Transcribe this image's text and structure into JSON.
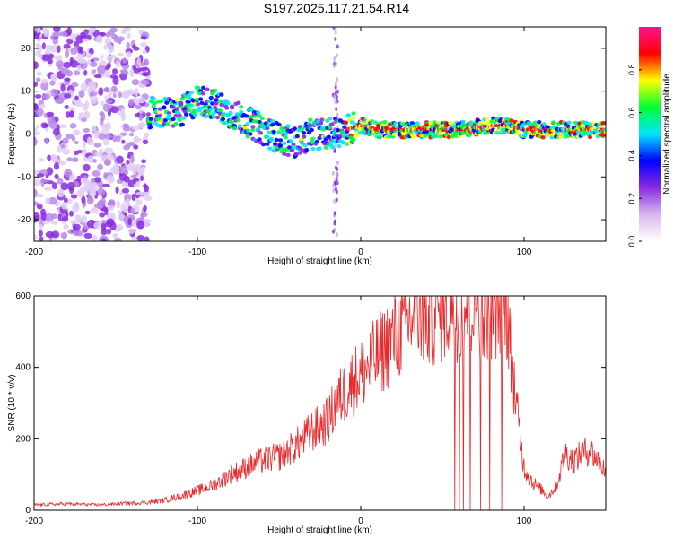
{
  "title": "S197.2025.117.21.54.R14",
  "chart_data": [
    {
      "type": "heatmap",
      "title": "S197.2025.117.21.54.R14",
      "xlabel": "Height of straight line (km)",
      "ylabel": "Frequency (Hz)",
      "xlim": [
        -200,
        150
      ],
      "ylim": [
        -25,
        25
      ],
      "x_ticks": [
        -200,
        -100,
        0,
        100
      ],
      "x_tick_labels": [
        "-200",
        "-100",
        "0",
        "100"
      ],
      "y_ticks": [
        -20,
        -10,
        0,
        10,
        20
      ],
      "y_tick_labels": [
        "-20",
        "-10",
        "0",
        "10",
        "20"
      ],
      "colorbar": {
        "label": "Normalized spectral amplitude",
        "range": [
          0,
          1
        ],
        "ticks": [
          0.0,
          0.2,
          0.4,
          0.6,
          0.8
        ],
        "tick_labels": [
          "0.0",
          "0.2",
          "0.4",
          "0.6",
          "0.8"
        ],
        "colormap": [
          "#ffffff",
          "#d8b8f0",
          "#8a2be2",
          "#0000ff",
          "#00e5ff",
          "#00ff33",
          "#ffff00",
          "#ff0000",
          "#ff1493"
        ]
      },
      "ridge": {
        "description_points_x": [
          -130,
          -120,
          -110,
          -100,
          -90,
          -80,
          -70,
          -60,
          -50,
          -40,
          -30,
          -20,
          -10,
          0,
          10,
          20,
          40,
          60,
          80,
          90,
          100,
          110,
          120,
          130,
          150
        ],
        "description_points_y": [
          5,
          5,
          5,
          8,
          7,
          5,
          3,
          1,
          -1,
          -2,
          0,
          0,
          1,
          2,
          1,
          1,
          1,
          1,
          2,
          2,
          1,
          1,
          1,
          1,
          1
        ]
      },
      "grid": false
    },
    {
      "type": "line",
      "xlabel": "Height of straight line (km)",
      "ylabel": "SNR (10 * v/v)",
      "xlim": [
        -200,
        150
      ],
      "ylim": [
        0,
        600
      ],
      "x_ticks": [
        -200,
        -100,
        0,
        100
      ],
      "x_tick_labels": [
        "-200",
        "-100",
        "0",
        "100"
      ],
      "y_ticks": [
        0,
        200,
        400,
        600
      ],
      "y_tick_labels": [
        "0",
        "200",
        "400",
        "600"
      ],
      "series": [
        {
          "color": "#e8282a",
          "x": [
            -200,
            -180,
            -160,
            -140,
            -130,
            -120,
            -110,
            -100,
            -90,
            -80,
            -70,
            -60,
            -50,
            -40,
            -30,
            -20,
            -15,
            -10,
            -5,
            0,
            10,
            20,
            30,
            35,
            40,
            50,
            60,
            70,
            80,
            85,
            90,
            95,
            100,
            105,
            110,
            115,
            120,
            125,
            130,
            140,
            150
          ],
          "y": [
            15,
            18,
            15,
            20,
            22,
            28,
            40,
            55,
            70,
            100,
            120,
            140,
            150,
            180,
            220,
            250,
            300,
            330,
            360,
            380,
            430,
            480,
            530,
            560,
            540,
            560,
            570,
            580,
            570,
            580,
            560,
            300,
            120,
            80,
            60,
            40,
            70,
            160,
            140,
            170,
            110
          ]
        }
      ],
      "grid": false
    }
  ]
}
